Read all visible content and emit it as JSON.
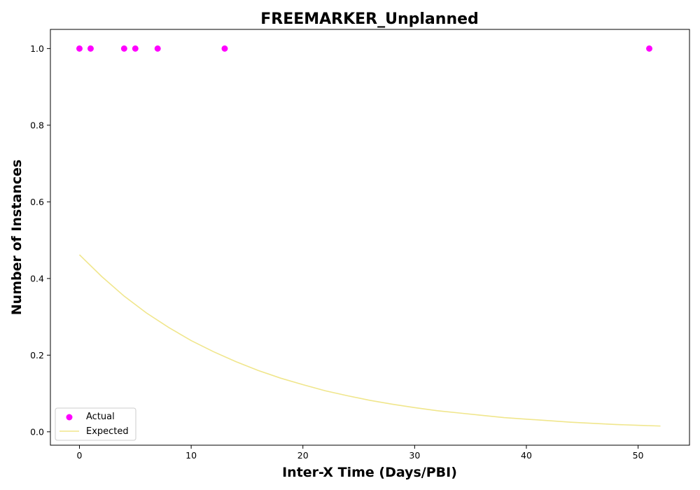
{
  "chart_data": {
    "type": "scatter",
    "title": "FREEMARKER_Unplanned",
    "xlabel": "Inter-X Time (Days/PBI)",
    "ylabel": "Number of Instances",
    "xlim": [
      -2.6,
      54.6
    ],
    "ylim": [
      -0.035,
      1.05
    ],
    "xticks": [
      0,
      10,
      20,
      30,
      40,
      50
    ],
    "yticks": [
      0.0,
      0.2,
      0.4,
      0.6,
      0.8,
      1.0
    ],
    "xtick_labels": [
      "0",
      "10",
      "20",
      "30",
      "40",
      "50"
    ],
    "ytick_labels": [
      "0.0",
      "0.2",
      "0.4",
      "0.6",
      "0.8",
      "1.0"
    ],
    "grid": false,
    "legend_position": "lower-left",
    "series": [
      {
        "name": "Actual",
        "kind": "scatter",
        "color": "#ff00ff",
        "x": [
          0,
          1,
          4,
          5,
          7,
          13,
          51
        ],
        "y": [
          1,
          1,
          1,
          1,
          1,
          1,
          1
        ]
      },
      {
        "name": "Expected",
        "kind": "line",
        "color": "#f0e68c",
        "x": [
          0,
          2,
          4,
          6,
          8,
          10,
          12,
          14,
          16,
          18,
          20,
          22,
          24,
          26,
          28,
          30,
          32,
          34,
          36,
          38,
          40,
          42,
          44,
          46,
          48,
          50,
          52
        ],
        "y": [
          0.462,
          0.405,
          0.354,
          0.31,
          0.272,
          0.238,
          0.209,
          0.183,
          0.16,
          0.14,
          0.123,
          0.107,
          0.094,
          0.082,
          0.072,
          0.063,
          0.055,
          0.049,
          0.043,
          0.037,
          0.033,
          0.029,
          0.025,
          0.022,
          0.019,
          0.017,
          0.015
        ]
      }
    ]
  }
}
